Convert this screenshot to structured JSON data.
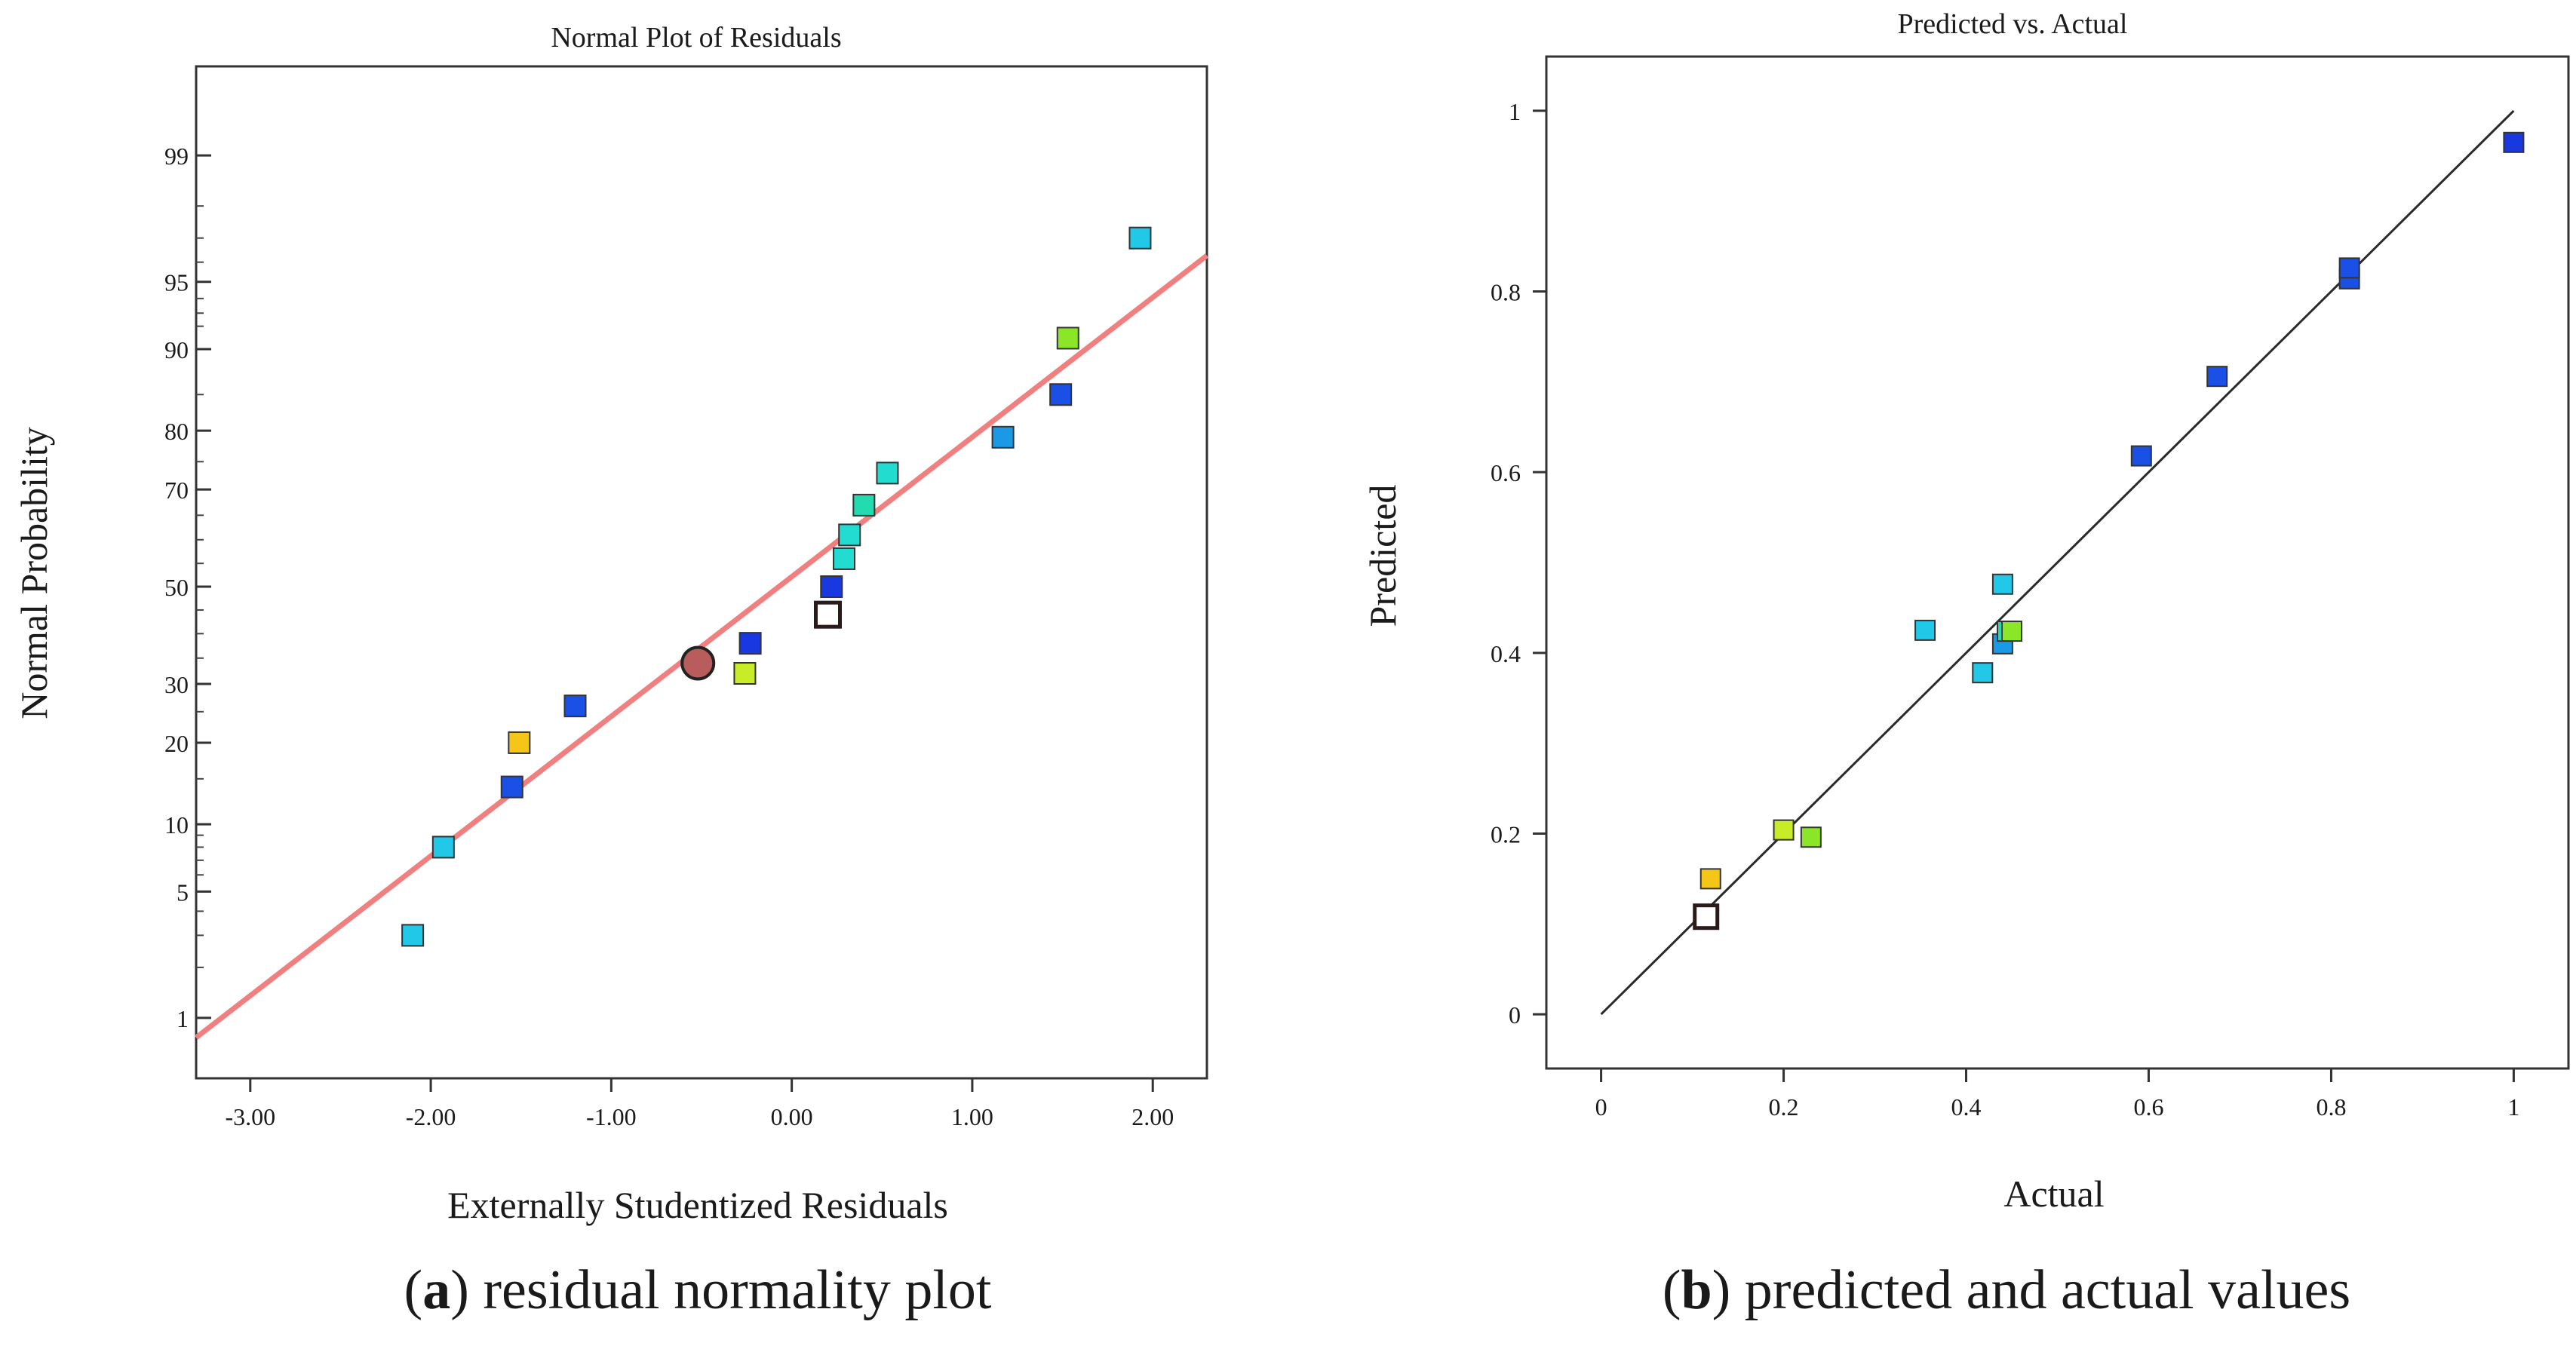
{
  "chart_data": [
    {
      "type": "scatter",
      "title": "Normal Plot of Residuals",
      "xlabel": "Externally Studentized Residuals",
      "ylabel": "Normal Probability",
      "caption_letter": "a",
      "caption_text": ") residual normality plot",
      "caption_paren": "(",
      "xlim": [
        -3.3,
        2.3
      ],
      "x_ticks": [
        -3.0,
        -2.0,
        -1.0,
        0.0,
        1.0,
        2.0
      ],
      "x_tick_labels": [
        "-3.00",
        "-2.00",
        "-1.00",
        "0.00",
        "1.00",
        "2.00"
      ],
      "y_scale": "probability",
      "ylim": [
        0.4,
        99.75
      ],
      "y_ticks": [
        1,
        5,
        10,
        20,
        30,
        50,
        70,
        80,
        90,
        95,
        99
      ],
      "y_tick_labels": [
        "1",
        "5",
        "10",
        "20",
        "30",
        "50",
        "70",
        "80",
        "90",
        "95",
        "99"
      ],
      "fit_line": {
        "x": [
          -3.3,
          2.3
        ],
        "y": [
          0.75,
          96.3
        ],
        "color": "#f08080"
      },
      "points": [
        {
          "x": -2.1,
          "y": 3.0,
          "color": "#22c8e8",
          "shape": "square"
        },
        {
          "x": -1.93,
          "y": 8.0,
          "color": "#22c8e8",
          "shape": "square"
        },
        {
          "x": -1.55,
          "y": 14.0,
          "color": "#1a50e6",
          "shape": "square"
        },
        {
          "x": -1.51,
          "y": 20.0,
          "color": "#f5c518",
          "shape": "square"
        },
        {
          "x": -1.2,
          "y": 26.0,
          "color": "#1a50e6",
          "shape": "square"
        },
        {
          "x": -0.52,
          "y": 34.0,
          "color": "#b85c5c",
          "shape": "circle"
        },
        {
          "x": -0.26,
          "y": 32.0,
          "color": "#c8ec28",
          "shape": "square"
        },
        {
          "x": -0.23,
          "y": 38.0,
          "color": "#1a38e0",
          "shape": "square"
        },
        {
          "x": 0.2,
          "y": 44.0,
          "color": "#ffffff",
          "shape": "square-open"
        },
        {
          "x": 0.22,
          "y": 50.0,
          "color": "#1a38e0",
          "shape": "square"
        },
        {
          "x": 0.29,
          "y": 56.0,
          "color": "#22dcd2",
          "shape": "square"
        },
        {
          "x": 0.32,
          "y": 61.0,
          "color": "#22dcd2",
          "shape": "square"
        },
        {
          "x": 0.4,
          "y": 67.0,
          "color": "#22dcb0",
          "shape": "square"
        },
        {
          "x": 0.53,
          "y": 73.0,
          "color": "#22dcd2",
          "shape": "square"
        },
        {
          "x": 1.17,
          "y": 79.0,
          "color": "#1a9ae6",
          "shape": "square"
        },
        {
          "x": 1.49,
          "y": 85.0,
          "color": "#1a50e6",
          "shape": "square"
        },
        {
          "x": 1.53,
          "y": 91.0,
          "color": "#8ce628",
          "shape": "square"
        },
        {
          "x": 1.93,
          "y": 97.0,
          "color": "#22c8e8",
          "shape": "square"
        }
      ]
    },
    {
      "type": "scatter",
      "title": "Predicted vs. Actual",
      "xlabel": "Actual",
      "ylabel": "Predicted",
      "caption_letter": "b",
      "caption_text": ") predicted and actual values",
      "caption_paren": "(",
      "xlim": [
        -0.06,
        1.06
      ],
      "ylim": [
        -0.06,
        1.06
      ],
      "x_ticks": [
        0,
        0.2,
        0.4,
        0.6,
        0.8,
        1
      ],
      "x_tick_labels": [
        "0",
        "0.2",
        "0.4",
        "0.6",
        "0.8",
        "1"
      ],
      "y_ticks": [
        0,
        0.2,
        0.4,
        0.6,
        0.8,
        1
      ],
      "y_tick_labels": [
        "0",
        "0.2",
        "0.4",
        "0.6",
        "0.8",
        "1"
      ],
      "fit_line": {
        "x": [
          0,
          1
        ],
        "y": [
          0,
          1
        ],
        "color": "#2a2a2a"
      },
      "points": [
        {
          "x": 0.115,
          "y": 0.108,
          "color": "#ffffff",
          "shape": "square-open"
        },
        {
          "x": 0.12,
          "y": 0.15,
          "color": "#f5c518",
          "shape": "square"
        },
        {
          "x": 0.2,
          "y": 0.204,
          "color": "#c8ec28",
          "shape": "square"
        },
        {
          "x": 0.23,
          "y": 0.196,
          "color": "#8ce628",
          "shape": "square"
        },
        {
          "x": 0.355,
          "y": 0.425,
          "color": "#22c8e8",
          "shape": "square"
        },
        {
          "x": 0.418,
          "y": 0.378,
          "color": "#22c8e8",
          "shape": "square"
        },
        {
          "x": 0.44,
          "y": 0.476,
          "color": "#22c8e8",
          "shape": "square"
        },
        {
          "x": 0.44,
          "y": 0.41,
          "color": "#1a9ae6",
          "shape": "square"
        },
        {
          "x": 0.445,
          "y": 0.424,
          "color": "#22dcb0",
          "shape": "square"
        },
        {
          "x": 0.45,
          "y": 0.424,
          "color": "#8ce628",
          "shape": "square"
        },
        {
          "x": 0.592,
          "y": 0.618,
          "color": "#1a50e6",
          "shape": "square"
        },
        {
          "x": 0.675,
          "y": 0.706,
          "color": "#1a50e6",
          "shape": "square"
        },
        {
          "x": 0.82,
          "y": 0.814,
          "color": "#1a50e6",
          "shape": "square"
        },
        {
          "x": 0.82,
          "y": 0.826,
          "color": "#1a50e6",
          "shape": "square"
        },
        {
          "x": 1.0,
          "y": 0.965,
          "color": "#1a38e0",
          "shape": "square"
        }
      ]
    }
  ]
}
